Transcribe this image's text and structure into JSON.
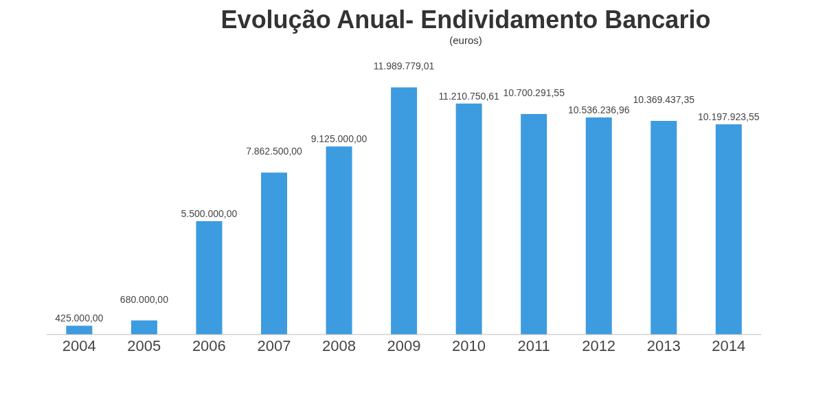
{
  "chart_data": {
    "type": "bar",
    "title": "Evolução Anual- Endividamento Bancario",
    "subtitle": "(euros)",
    "categories": [
      "2004",
      "2005",
      "2006",
      "2007",
      "2008",
      "2009",
      "2010",
      "2011",
      "2012",
      "2013",
      "2014"
    ],
    "values": [
      425000,
      680000,
      5500000,
      7862500,
      9125000,
      11989779.01,
      11210750.61,
      10700291.55,
      10536236.96,
      10369437.35,
      10197923.55
    ],
    "value_labels": [
      "425.000,00",
      "680.000,00",
      "5.500.000,00",
      "7.862.500,00",
      "9.125.000,00",
      "11.989.779,01",
      "11.210.750,61",
      "10.700.291,55",
      "10.536.236,96",
      "10.369.437,35",
      "10.197.923,55"
    ],
    "color": "#3d9be0",
    "ylim": [
      0,
      12000000
    ],
    "tick_labels": "x",
    "grid": false,
    "legend": false
  }
}
